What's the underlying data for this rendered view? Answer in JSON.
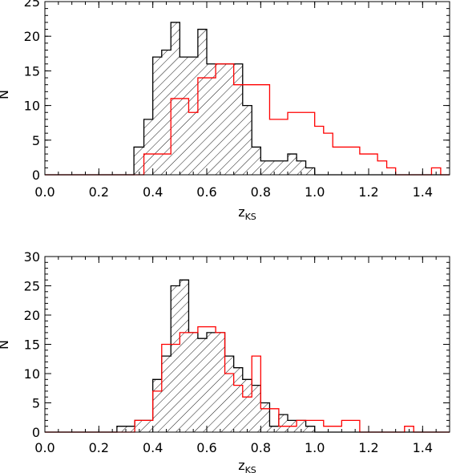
{
  "chart_data": [
    {
      "type": "histogram",
      "xlabel": "z",
      "xlabel_sub": "KS",
      "ylabel": "N",
      "xlim": [
        0.0,
        1.5
      ],
      "ylim": [
        0,
        25
      ],
      "xticks": [
        0.0,
        0.2,
        0.4,
        0.6,
        0.8,
        1.0,
        1.2,
        1.4
      ],
      "xtick_labels": [
        "0.0",
        "0.2",
        "0.4",
        "0.6",
        "0.8",
        "1.0",
        "1.2",
        "1.4"
      ],
      "yticks": [
        0,
        5,
        10,
        15,
        20,
        25
      ],
      "ytick_labels": [
        "0",
        "5",
        "10",
        "15",
        "20",
        "25"
      ],
      "bin_edges": [
        0.0,
        0.33,
        0.367,
        0.4,
        0.433,
        0.467,
        0.5,
        0.533,
        0.567,
        0.6,
        0.633,
        0.667,
        0.7,
        0.733,
        0.767,
        0.8,
        0.833,
        0.867,
        0.9,
        0.933,
        0.967,
        1.0,
        1.033,
        1.067,
        1.1,
        1.133,
        1.167,
        1.2,
        1.233,
        1.267,
        1.3,
        1.333,
        1.367,
        1.4,
        1.433,
        1.467,
        1.5
      ],
      "series": [
        {
          "color": "#000000",
          "hatched": true,
          "counts": [
            0,
            4,
            8,
            17,
            18,
            22,
            17,
            17,
            21,
            16,
            16,
            16,
            16,
            10,
            4,
            2,
            2,
            2,
            3,
            2,
            1,
            0,
            0,
            0,
            0,
            0,
            0,
            0,
            0,
            0,
            0,
            0,
            0,
            0,
            0,
            0
          ]
        },
        {
          "color": "#ff0000",
          "hatched": false,
          "counts": [
            0,
            0,
            3,
            3,
            3,
            11,
            11,
            9,
            14,
            14,
            16,
            16,
            13,
            13,
            13,
            13,
            8,
            8,
            9,
            9,
            9,
            7,
            6,
            4,
            4,
            4,
            3,
            3,
            2,
            1,
            0,
            0,
            0,
            0,
            1,
            0
          ]
        }
      ]
    },
    {
      "type": "histogram",
      "xlabel": "z",
      "xlabel_sub": "KS",
      "ylabel": "N",
      "xlim": [
        0.0,
        1.5
      ],
      "ylim": [
        0,
        30
      ],
      "xticks": [
        0.0,
        0.2,
        0.4,
        0.6,
        0.8,
        1.0,
        1.2,
        1.4
      ],
      "xtick_labels": [
        "0.0",
        "0.2",
        "0.4",
        "0.6",
        "0.8",
        "1.0",
        "1.2",
        "1.4"
      ],
      "yticks": [
        0,
        5,
        10,
        15,
        20,
        25,
        30
      ],
      "ytick_labels": [
        "0",
        "5",
        "10",
        "15",
        "20",
        "25",
        "30"
      ],
      "bin_edges": [
        0.0,
        0.267,
        0.3,
        0.333,
        0.367,
        0.4,
        0.433,
        0.467,
        0.5,
        0.533,
        0.567,
        0.6,
        0.633,
        0.667,
        0.7,
        0.733,
        0.767,
        0.8,
        0.833,
        0.867,
        0.9,
        0.933,
        0.967,
        1.0,
        1.033,
        1.067,
        1.1,
        1.133,
        1.167,
        1.2,
        1.233,
        1.267,
        1.3,
        1.333,
        1.367,
        1.4,
        1.433,
        1.467,
        1.5
      ],
      "series": [
        {
          "color": "#000000",
          "hatched": true,
          "counts": [
            0,
            1,
            1,
            2,
            2,
            9,
            13,
            25,
            26,
            17,
            16,
            17,
            17,
            13,
            11,
            9,
            8,
            5,
            1,
            3,
            2,
            2,
            1,
            0,
            0,
            0,
            0,
            0,
            0,
            0,
            0,
            0,
            0,
            0,
            0,
            0,
            0,
            0
          ]
        },
        {
          "color": "#ff0000",
          "hatched": false,
          "counts": [
            0,
            0,
            0,
            2,
            2,
            7,
            15,
            15,
            17,
            17,
            18,
            18,
            17,
            10,
            8,
            6,
            13,
            4,
            4,
            1,
            1,
            2,
            2,
            2,
            1,
            1,
            2,
            2,
            0,
            0,
            0,
            0,
            0,
            1,
            0,
            0,
            0,
            0
          ]
        }
      ]
    }
  ]
}
